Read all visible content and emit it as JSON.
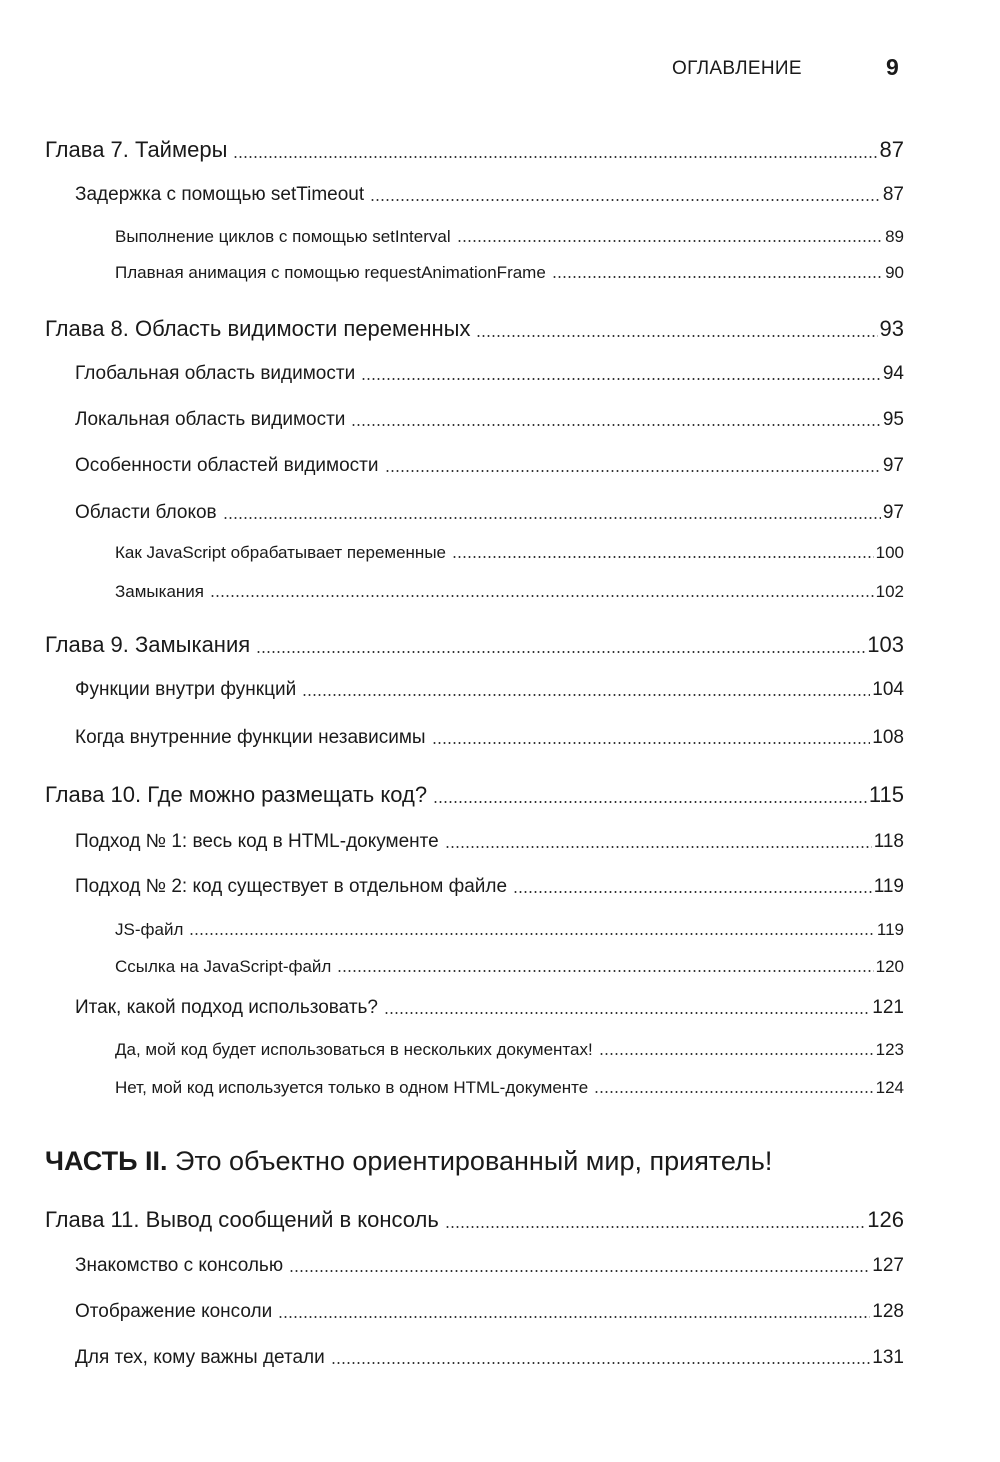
{
  "header": {
    "section_title": "ОГЛАВЛЕНИЕ",
    "page_number": "9"
  },
  "entries": [
    {
      "title": "Глава 7. Таймеры",
      "page": "87"
    },
    {
      "title": "Задержка с помощью setTimeout",
      "page": "87"
    },
    {
      "title": "Выполнение циклов с помощью setInterval",
      "page": "89"
    },
    {
      "title": "Плавная анимация с помощью requestAnimationFrame",
      "page": "90"
    },
    {
      "title": "Глава 8. Область видимости переменных",
      "page": "93"
    },
    {
      "title": "Глобальная область видимости",
      "page": "94"
    },
    {
      "title": "Локальная область видимости",
      "page": "95"
    },
    {
      "title": "Особенности областей видимости",
      "page": "97"
    },
    {
      "title": "Области блоков",
      "page": "97"
    },
    {
      "title": "Как JavaScript обрабатывает переменные",
      "page": "100"
    },
    {
      "title": "Замыкания",
      "page": "102"
    },
    {
      "title": "Глава 9. Замыкания",
      "page": "103"
    },
    {
      "title": "Функции внутри функций",
      "page": "104"
    },
    {
      "title": "Когда внутренние функции независимы",
      "page": "108"
    },
    {
      "title": "Глава 10. Где можно размещать код?",
      "page": "115"
    },
    {
      "title": "Подход № 1: весь код в HTML-документе",
      "page": "118"
    },
    {
      "title": "Подход № 2: код существует в отдельном файле",
      "page": "119"
    },
    {
      "title": "JS-файл",
      "page": "119"
    },
    {
      "title": "Ссылка на JavaScript-файл",
      "page": "120"
    },
    {
      "title": "Итак, какой подход использовать?",
      "page": "121"
    },
    {
      "title": "Да, мой код будет использоваться в нескольких документах!",
      "page": "123"
    },
    {
      "title": "Нет, мой код используется только в одном HTML-документе",
      "page": "124"
    },
    {
      "title": "Глава 11. Вывод сообщений в консоль",
      "page": "126"
    },
    {
      "title": "Знакомство с консолью",
      "page": "127"
    },
    {
      "title": "Отображение консоли",
      "page": "128"
    },
    {
      "title": "Для тех, кому важны детали",
      "page": "131"
    }
  ],
  "part": {
    "label": "ЧАСТЬ II.",
    "title": "Это объектно ориентированный мир, приятель!"
  }
}
